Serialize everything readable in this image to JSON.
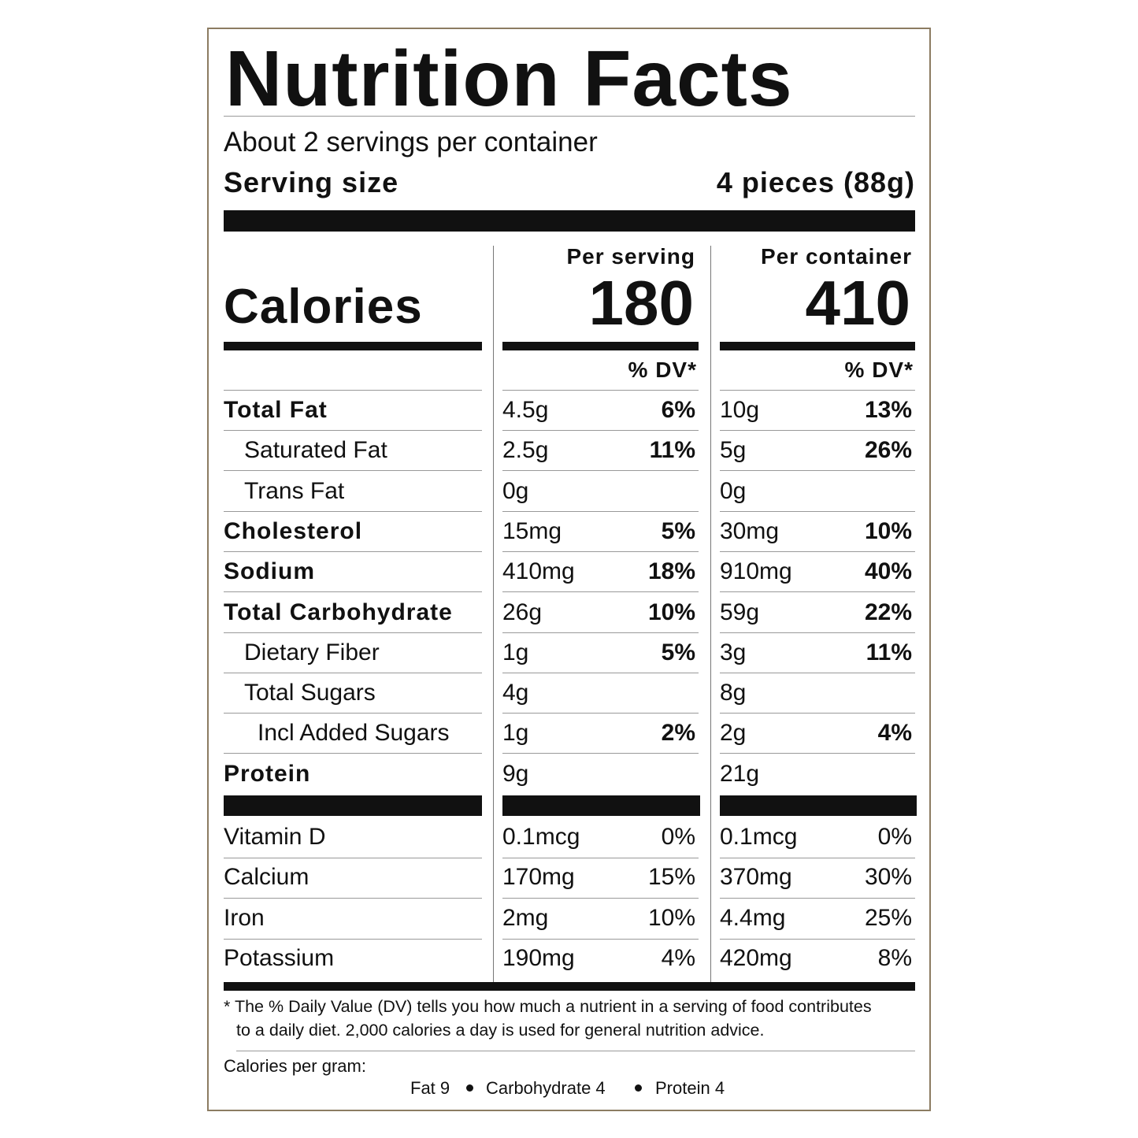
{
  "title": "Nutrition Facts",
  "servings": "About 2 servings per container",
  "serving_size": {
    "label": "Serving size",
    "value": "4 pieces (88g)"
  },
  "columns": [
    "Per serving",
    "Per container"
  ],
  "calories": {
    "label": "Calories",
    "values": [
      "180",
      "410"
    ]
  },
  "dv_header": "% DV*",
  "nutrients": [
    {
      "name": "Total Fat",
      "bold": true,
      "indent": 0,
      "per_serving": {
        "amount": "4.5g",
        "dv": "6%"
      },
      "per_container": {
        "amount": "10g",
        "dv": "13%"
      }
    },
    {
      "name": "Saturated Fat",
      "bold": false,
      "indent": 1,
      "per_serving": {
        "amount": "2.5g",
        "dv": "11%"
      },
      "per_container": {
        "amount": "5g",
        "dv": "26%"
      }
    },
    {
      "name": "Trans Fat",
      "bold": false,
      "indent": 1,
      "per_serving": {
        "amount": "0g"
      },
      "per_container": {
        "amount": "0g"
      }
    },
    {
      "name": "Cholesterol",
      "bold": true,
      "indent": 0,
      "per_serving": {
        "amount": "15mg",
        "dv": "5%"
      },
      "per_container": {
        "amount": "30mg",
        "dv": "10%"
      }
    },
    {
      "name": "Sodium",
      "bold": true,
      "indent": 0,
      "per_serving": {
        "amount": "410mg",
        "dv": "18%"
      },
      "per_container": {
        "amount": "910mg",
        "dv": "40%"
      }
    },
    {
      "name": "Total Carbohydrate",
      "bold": true,
      "indent": 0,
      "per_serving": {
        "amount": "26g",
        "dv": "10%"
      },
      "per_container": {
        "amount": "59g",
        "dv": "22%"
      }
    },
    {
      "name": "Dietary Fiber",
      "bold": false,
      "indent": 1,
      "per_serving": {
        "amount": "1g",
        "dv": "5%"
      },
      "per_container": {
        "amount": "3g",
        "dv": "11%"
      }
    },
    {
      "name": "Total Sugars",
      "bold": false,
      "indent": 1,
      "per_serving": {
        "amount": "4g"
      },
      "per_container": {
        "amount": "8g"
      }
    },
    {
      "name": "Incl Added Sugars",
      "bold": false,
      "indent": 2,
      "per_serving": {
        "amount": "1g",
        "dv": "2%"
      },
      "per_container": {
        "amount": "2g",
        "dv": "4%"
      }
    },
    {
      "name": "Protein",
      "bold": true,
      "indent": 0,
      "per_serving": {
        "amount": "9g"
      },
      "per_container": {
        "amount": "21g"
      }
    }
  ],
  "vitamins": [
    {
      "name": "Vitamin D",
      "per_serving": {
        "amount": "0.1mcg",
        "dv": "0%"
      },
      "per_container": {
        "amount": "0.1mcg",
        "dv": "0%"
      }
    },
    {
      "name": "Calcium",
      "per_serving": {
        "amount": "170mg",
        "dv": "15%"
      },
      "per_container": {
        "amount": "370mg",
        "dv": "30%"
      }
    },
    {
      "name": "Iron",
      "per_serving": {
        "amount": "2mg",
        "dv": "10%"
      },
      "per_container": {
        "amount": "4.4mg",
        "dv": "25%"
      }
    },
    {
      "name": "Potassium",
      "per_serving": {
        "amount": "190mg",
        "dv": "4%"
      },
      "per_container": {
        "amount": "420mg",
        "dv": "8%"
      }
    }
  ],
  "footnote": [
    "* The % Daily Value (DV) tells you how much a nutrient in a serving of food contributes",
    "to a daily diet. 2,000 calories a day is used for general nutrition advice."
  ],
  "calories_per_gram": {
    "label": "Calories per gram:",
    "items": [
      "Fat 9",
      "Carbohydrate 4",
      "Protein 4"
    ]
  }
}
